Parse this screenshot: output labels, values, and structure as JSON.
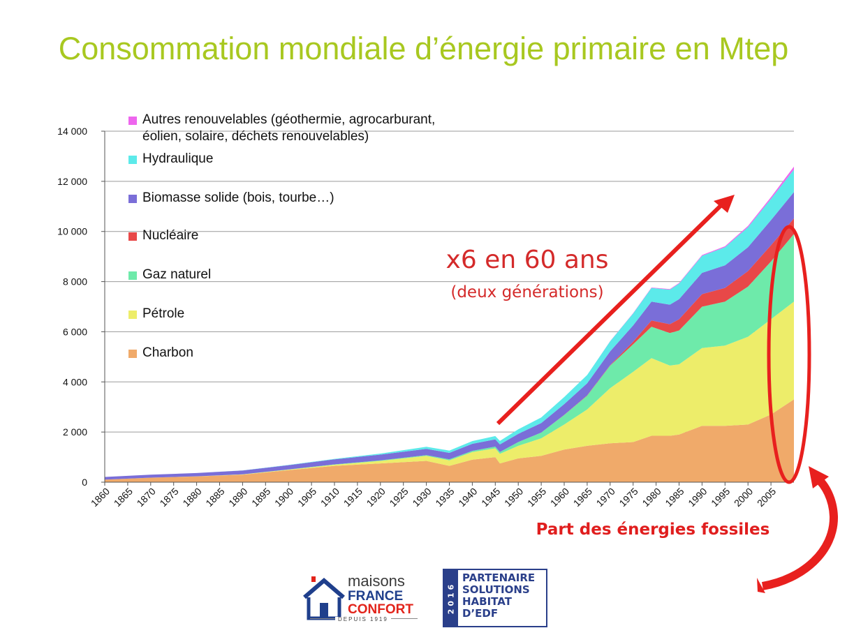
{
  "title": "Consommation mondiale d’énergie primaire en Mtep",
  "annotations": {
    "growth": "x6 en 60 ans",
    "growth_note": "(deux générations)",
    "fossil_share": "Part des énergies fossiles"
  },
  "colors": {
    "title": "#a8c820",
    "annotation": "#d42a2a",
    "arrow": "#e8201e"
  },
  "logos": {
    "maisons": {
      "line1": "maisons",
      "line2": "FRANCE",
      "line3": "CONFORT",
      "line4": "DEPUIS 1919",
      "icon": "house-icon"
    },
    "edf": {
      "year": "2016",
      "lines": [
        "PARTENAIRE",
        "SOLUTIONS",
        "HABITAT",
        "D’EDF"
      ]
    }
  },
  "chart_data": {
    "type": "area",
    "stacked": true,
    "title": "Consommation mondiale d’énergie primaire en Mtep",
    "xlabel": "",
    "ylabel": "",
    "ylim": [
      0,
      14000
    ],
    "yticks": [
      0,
      2000,
      4000,
      6000,
      8000,
      10000,
      12000,
      14000
    ],
    "ytick_labels": [
      "0",
      "2 000",
      "4 000",
      "6 000",
      "8 000",
      "10 000",
      "12 000",
      "14 000"
    ],
    "xlim": [
      1860,
      2010
    ],
    "xtick_labels": [
      "1860",
      "1865",
      "1870",
      "1875",
      "1880",
      "1885",
      "1890",
      "1895",
      "1900",
      "1905",
      "1910",
      "1915",
      "1920",
      "1925",
      "1930",
      "1935",
      "1940",
      "1945",
      "1950",
      "1955",
      "1960",
      "1965",
      "1970",
      "1975",
      "1980",
      "1985",
      "1990",
      "1995",
      "2000",
      "2005"
    ],
    "grid": true,
    "legend_position": "top-left",
    "x": [
      1860,
      1870,
      1880,
      1890,
      1900,
      1910,
      1920,
      1930,
      1935,
      1940,
      1945,
      1946,
      1950,
      1955,
      1960,
      1965,
      1970,
      1975,
      1979,
      1983,
      1985,
      1990,
      1995,
      2000,
      2005,
      2010
    ],
    "series": [
      {
        "name": "Charbon",
        "color": "#f0aa6a",
        "values": [
          100,
          180,
          230,
          300,
          480,
          650,
          750,
          850,
          650,
          900,
          1000,
          750,
          950,
          1050,
          1300,
          1450,
          1550,
          1600,
          1850,
          1850,
          1900,
          2250,
          2250,
          2300,
          2700,
          3300
        ]
      },
      {
        "name": "Pétrole",
        "color": "#eded6a",
        "values": [
          0,
          0,
          5,
          10,
          20,
          45,
          100,
          200,
          220,
          300,
          350,
          380,
          500,
          700,
          1000,
          1450,
          2200,
          2800,
          3100,
          2800,
          2800,
          3100,
          3200,
          3500,
          3800,
          3900
        ]
      },
      {
        "name": "Gaz naturel",
        "color": "#6eeaaa",
        "values": [
          0,
          0,
          0,
          5,
          10,
          15,
          20,
          30,
          40,
          50,
          70,
          75,
          150,
          230,
          380,
          550,
          900,
          1100,
          1250,
          1300,
          1350,
          1650,
          1750,
          2000,
          2300,
          2700
        ]
      },
      {
        "name": "Nucléaire",
        "color": "#e84848",
        "values": [
          0,
          0,
          0,
          0,
          0,
          0,
          0,
          0,
          0,
          0,
          0,
          0,
          0,
          0,
          5,
          15,
          20,
          100,
          250,
          350,
          450,
          500,
          550,
          620,
          650,
          620
        ]
      },
      {
        "name": "Biomasse solide (bois, tourbe…)",
        "color": "#7a6ed8",
        "values": [
          110,
          120,
          130,
          150,
          170,
          200,
          230,
          250,
          260,
          280,
          290,
          300,
          330,
          380,
          430,
          480,
          550,
          650,
          750,
          780,
          800,
          850,
          900,
          950,
          1000,
          1050
        ]
      },
      {
        "name": "Hydraulique",
        "color": "#5ceaea",
        "values": [
          0,
          0,
          0,
          5,
          10,
          20,
          40,
          80,
          90,
          110,
          130,
          140,
          180,
          220,
          280,
          330,
          400,
          480,
          550,
          600,
          620,
          680,
          720,
          800,
          850,
          900
        ]
      },
      {
        "name": "Autres renouvelables (géothermie, agrocarburant, éolien, solaire, déchets renouvelables)",
        "color": "#ee66ee",
        "values": [
          0,
          0,
          0,
          0,
          0,
          0,
          0,
          0,
          0,
          0,
          0,
          0,
          0,
          0,
          0,
          0,
          5,
          10,
          15,
          20,
          25,
          30,
          40,
          50,
          70,
          120
        ]
      }
    ]
  }
}
